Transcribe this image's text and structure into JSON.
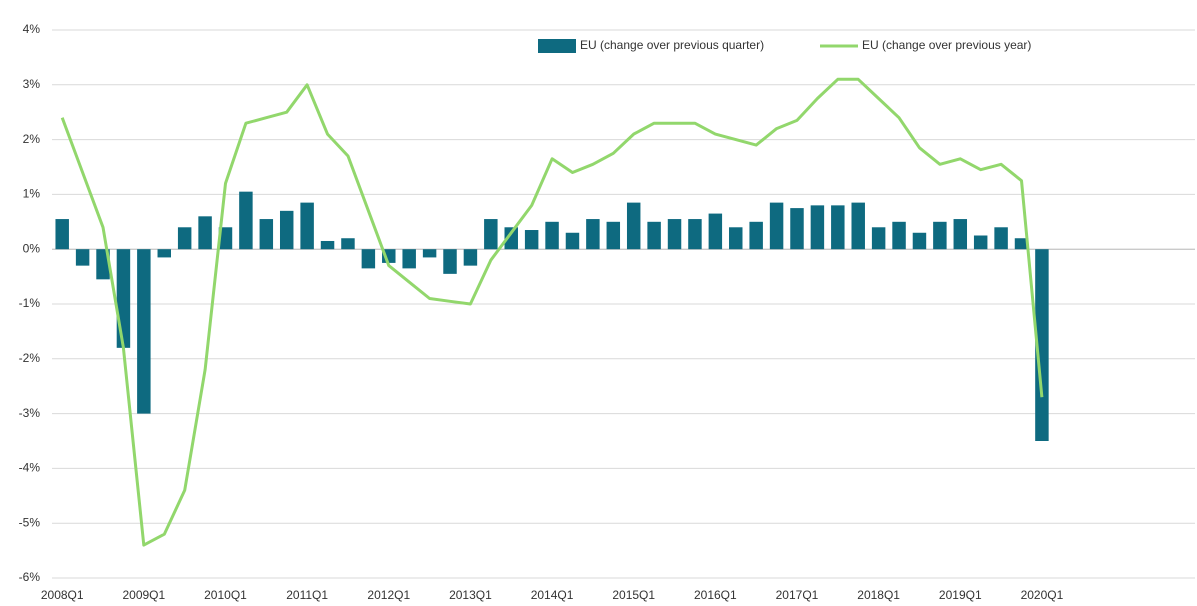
{
  "chart_data": {
    "type": "bar-line",
    "categories": [
      "2008Q1",
      null,
      null,
      null,
      "2009Q1",
      null,
      null,
      null,
      "2010Q1",
      null,
      null,
      null,
      "2011Q1",
      null,
      null,
      null,
      "2012Q1",
      null,
      null,
      null,
      "2013Q1",
      null,
      null,
      null,
      "2014Q1",
      null,
      null,
      null,
      "2015Q1",
      null,
      null,
      null,
      "2016Q1",
      null,
      null,
      null,
      "2017Q1",
      null,
      null,
      null,
      "2018Q1",
      null,
      null,
      null,
      "2019Q1",
      null,
      null,
      null,
      "2020Q1",
      null,
      null,
      null,
      null,
      null,
      null,
      null
    ],
    "series": [
      {
        "name": "EU (change over previous quarter)",
        "type": "bar",
        "color": "#0e6a80",
        "values": [
          0.55,
          -0.3,
          -0.55,
          -1.8,
          -3.0,
          -0.15,
          0.4,
          0.6,
          0.4,
          1.05,
          0.55,
          0.7,
          0.85,
          0.15,
          0.2,
          -0.35,
          -0.25,
          -0.35,
          -0.15,
          -0.45,
          -0.3,
          0.55,
          0.4,
          0.35,
          0.5,
          0.3,
          0.55,
          0.5,
          0.85,
          0.5,
          0.55,
          0.55,
          0.65,
          0.4,
          0.5,
          0.85,
          0.75,
          0.8,
          0.8,
          0.85,
          0.4,
          0.5,
          0.3,
          0.5,
          0.55,
          0.25,
          0.4,
          0.2,
          -3.5,
          null,
          null,
          null,
          null,
          null,
          null,
          null
        ]
      },
      {
        "name": "EU (change over previous year)",
        "type": "line",
        "color": "#92d76c",
        "values": [
          2.4,
          1.4,
          0.4,
          -1.8,
          -5.4,
          -5.2,
          -4.4,
          -2.2,
          1.2,
          2.3,
          2.4,
          2.5,
          3.0,
          2.1,
          1.7,
          0.7,
          -0.3,
          -0.6,
          -0.9,
          -0.95,
          -1.0,
          -0.2,
          0.3,
          0.8,
          1.65,
          1.4,
          1.55,
          1.75,
          2.1,
          2.3,
          2.3,
          2.3,
          2.1,
          2.0,
          1.9,
          2.2,
          2.35,
          2.75,
          3.1,
          3.1,
          2.75,
          2.4,
          1.85,
          1.55,
          1.65,
          1.45,
          1.55,
          1.25,
          -2.7,
          null,
          null,
          null,
          null,
          null,
          null,
          null
        ]
      }
    ],
    "ylim": [
      -6,
      4
    ],
    "yticks": [
      {
        "value": -6,
        "label": "-6%"
      },
      {
        "value": -5,
        "label": "-5%"
      },
      {
        "value": -4,
        "label": "-4%"
      },
      {
        "value": -3,
        "label": "-3%"
      },
      {
        "value": -2,
        "label": "-2%"
      },
      {
        "value": -1,
        "label": "-1%"
      },
      {
        "value": 0,
        "label": "0%"
      },
      {
        "value": 1,
        "label": "1%"
      },
      {
        "value": 2,
        "label": "2%"
      },
      {
        "value": 3,
        "label": "3%"
      },
      {
        "value": 4,
        "label": "4%"
      }
    ],
    "grid": true
  }
}
